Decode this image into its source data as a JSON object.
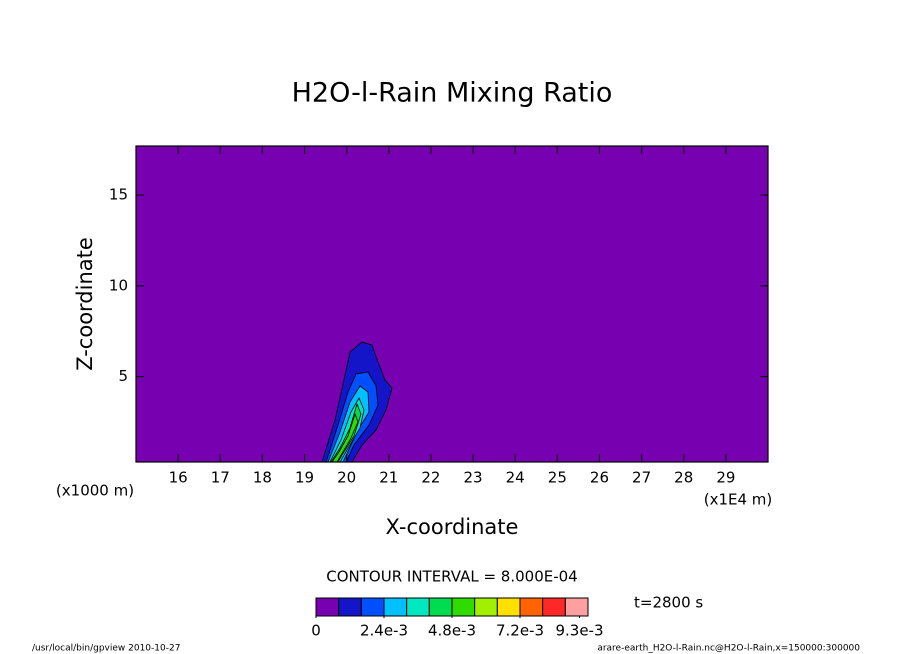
{
  "chart_data": {
    "type": "contour",
    "title": "H2O-l-Rain Mixing Ratio",
    "x_label": "X-coordinate",
    "y_label": "Z-coordinate",
    "x_unit": "(x1E4 m)",
    "y_unit": "(x1000 m)",
    "xlim": [
      15,
      30
    ],
    "xticks": [
      16,
      17,
      18,
      19,
      20,
      21,
      22,
      23,
      24,
      25,
      26,
      27,
      28,
      29
    ],
    "ylim": [
      0.3,
      17.7
    ],
    "yticks": [
      5,
      10,
      15
    ],
    "contour_interval": "CONTOUR INTERVAL = 8.000E-04",
    "time_label": "t=2800 s",
    "colorbar": {
      "lim": [
        0,
        0.0096
      ],
      "colors": [
        "#7700b0",
        "#1414c8",
        "#0050ff",
        "#00c0ff",
        "#00e8c0",
        "#00dc50",
        "#30dc00",
        "#a0f000",
        "#ffe000",
        "#ff6400",
        "#ff2828",
        "#ffa0a0"
      ],
      "ticks": [
        {
          "value": 0,
          "label": "0"
        },
        {
          "value": 0.0024,
          "label": "2.4e-3"
        },
        {
          "value": 0.0048,
          "label": "4.8e-3"
        },
        {
          "value": 0.0072,
          "label": "7.2e-3"
        },
        {
          "value": 0.0093,
          "label": "9.3e-3"
        }
      ]
    },
    "footer_left": "/usr/local/bin/gpview  2010-10-27",
    "footer_right": "arare-earth_H2O-l-Rain.nc@H2O-l-Rain,x=150000:300000"
  }
}
